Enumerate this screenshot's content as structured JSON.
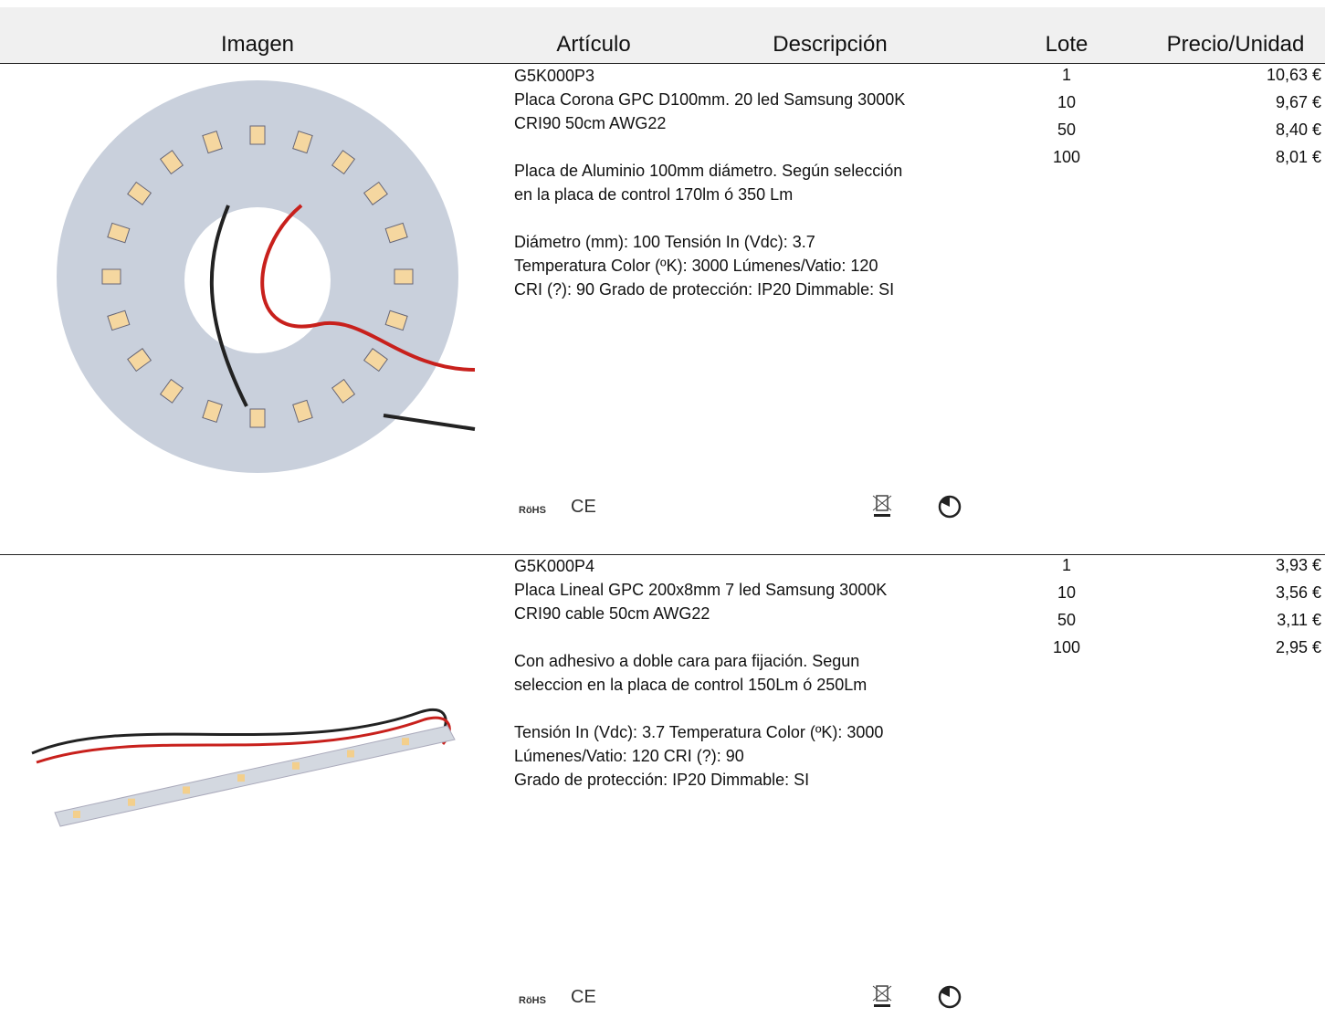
{
  "header": {
    "columns": [
      "Imagen",
      "Artículo",
      "Descripción",
      "Lote",
      "Precio/Unidad"
    ]
  },
  "rows": [
    {
      "code": "G5K000P3",
      "paragraphs": [
        [
          "Placa Corona GPC D100mm. 20 led Samsung 3000K",
          "CRI90 50cm AWG22"
        ],
        [
          "Placa de Aluminio 100mm diámetro. Según selección",
          "en la placa de control 170lm ó 350 Lm"
        ],
        [
          "Diámetro (mm): 100 Tensión In (Vdc): 3.7",
          "Temperatura Color (ºK): 3000 Lúmenes/Vatio: 120",
          "CRI (?): 90 Grado de protección: IP20 Dimmable: SI"
        ]
      ],
      "lots": [
        1,
        10,
        50,
        100
      ],
      "prices": [
        "10,63 €",
        "9,67 €",
        "8,40 €",
        "8,01 €"
      ],
      "icons": [
        "RöHS",
        "CE"
      ]
    },
    {
      "code": "G5K000P4",
      "paragraphs": [
        [
          "Placa Lineal GPC 200x8mm 7 led Samsung 3000K",
          "CRI90 cable 50cm AWG22"
        ],
        [
          "Con adhesivo a doble cara para fijación. Segun",
          "seleccion en la placa de control 150Lm ó 250Lm"
        ],
        [
          "Tensión In (Vdc): 3.7 Temperatura Color (ºK): 3000",
          "Lúmenes/Vatio: 120 CRI (?): 90",
          "Grado de protección: IP20 Dimmable: SI"
        ]
      ],
      "lots": [
        1,
        10,
        50,
        100
      ],
      "prices": [
        "3,93 €",
        "3,56 €",
        "3,11 €",
        "2,95 €"
      ],
      "icons": [
        "RöHS",
        "CE"
      ]
    }
  ]
}
